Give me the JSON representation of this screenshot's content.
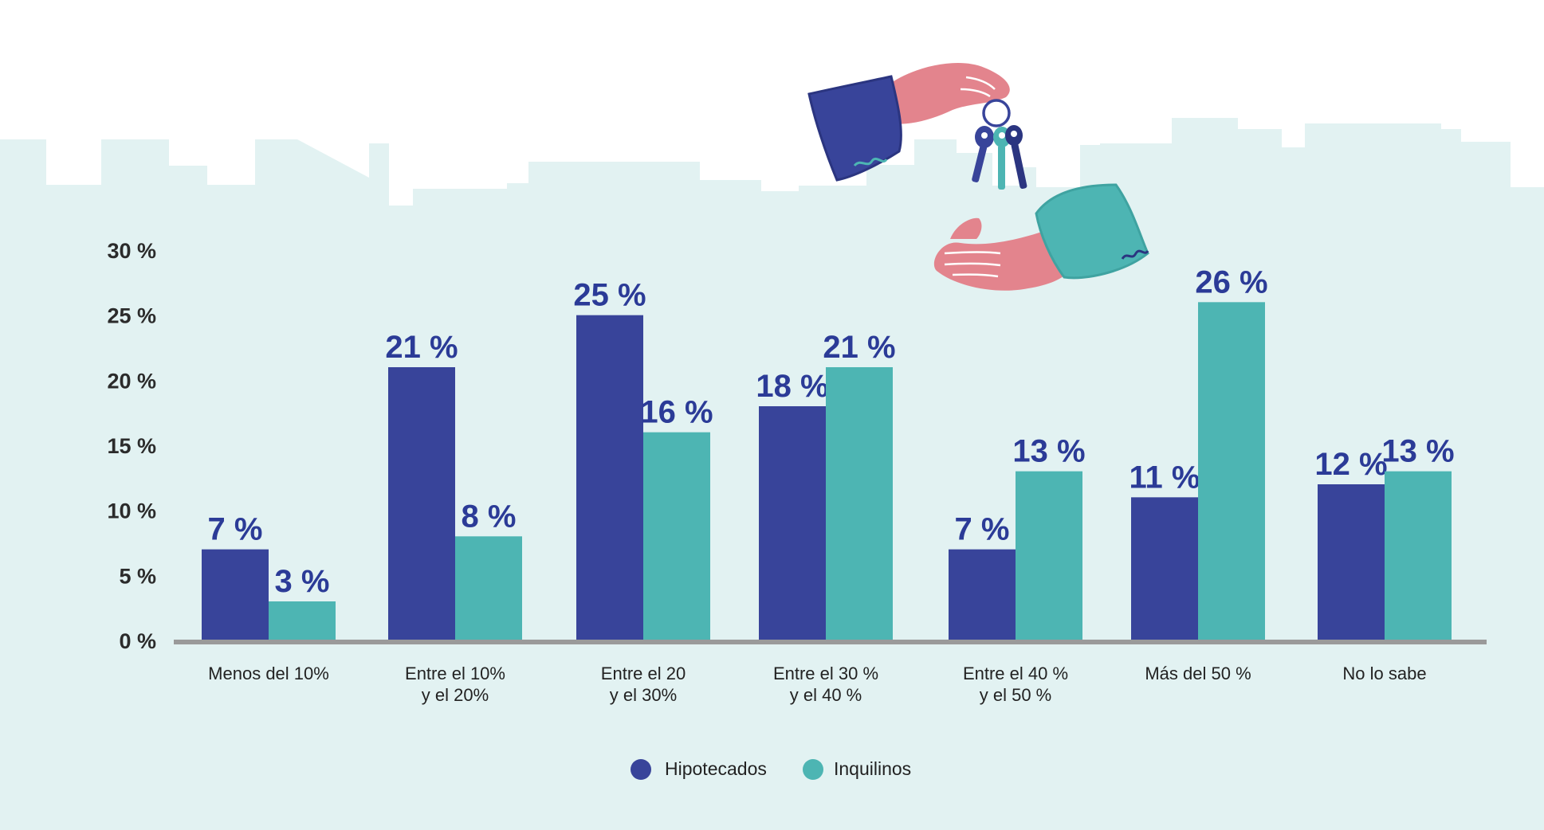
{
  "colors": {
    "background_band": "#e2f2f2",
    "hipotecados": "#38449a",
    "inquilinos": "#4db5b3",
    "value_label": "#2b3b97",
    "axis": "#9a9a9a",
    "skin": "#e3848d",
    "teal_sleeve": "#4db5b3",
    "navy_sleeve": "#38449a"
  },
  "illustration": {
    "icon": "hands-exchanging-keys-icon"
  },
  "chart_data": {
    "type": "bar",
    "categories": [
      [
        "Menos del 10%"
      ],
      [
        "Entre el 10%",
        "y el 20%"
      ],
      [
        "Entre el 20",
        "y el 30%"
      ],
      [
        "Entre el 30 %",
        "y el 40 %"
      ],
      [
        "Entre el 40 %",
        "y el 50 %"
      ],
      [
        "Más del 50 %"
      ],
      [
        "No lo sabe"
      ]
    ],
    "series": [
      {
        "name": "Hipotecados",
        "color": "#38449a",
        "values": [
          7,
          21,
          25,
          18,
          7,
          11,
          12
        ],
        "labels": [
          "7 %",
          "21 %",
          "25 %",
          "18 %",
          "7 %",
          "11 %",
          "12 %"
        ]
      },
      {
        "name": "Inquilinos",
        "color": "#4db5b3",
        "values": [
          3,
          8,
          16,
          21,
          13,
          26,
          13
        ],
        "labels": [
          "3 %",
          "8 %",
          "16 %",
          "21 %",
          "13 %",
          "26 %",
          "13 %"
        ]
      }
    ],
    "yticks": [
      0,
      5,
      10,
      15,
      20,
      25,
      30
    ],
    "ytick_labels": [
      "0 %",
      "5 %",
      "10 %",
      "15 %",
      "20 %",
      "25 %",
      "30 %"
    ],
    "ylim": [
      0,
      30
    ],
    "grid": false,
    "legend_position": "bottom-center"
  }
}
